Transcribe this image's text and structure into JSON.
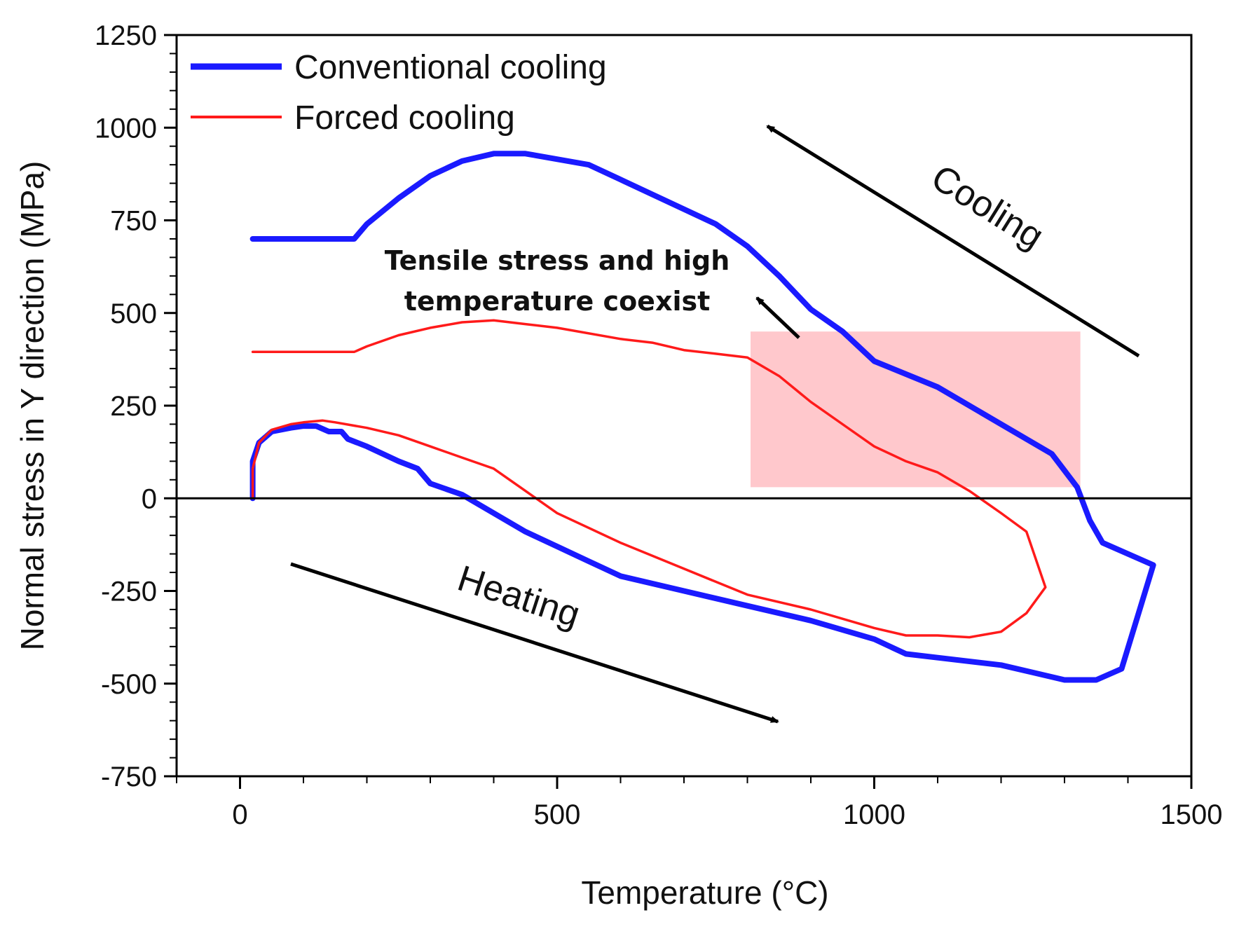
{
  "chart_data": {
    "type": "line",
    "title": "",
    "xlabel": "Temperature (°C)",
    "ylabel": "Normal stress in Y direction (MPa)",
    "xlim": [
      -100,
      1500
    ],
    "ylim": [
      -750,
      1250
    ],
    "xticks": [
      0,
      500,
      1000,
      1500
    ],
    "xtick_labels": [
      "0",
      "500",
      "1000",
      "1500"
    ],
    "yticks": [
      -750,
      -500,
      -250,
      0,
      250,
      500,
      750,
      1000,
      1250
    ],
    "ytick_labels": [
      "-750",
      "-500",
      "-250",
      "0",
      "250",
      "500",
      "750",
      "1000",
      "1250"
    ],
    "grid": false,
    "zero_line": true,
    "legend": {
      "position": "top-left"
    },
    "series": [
      {
        "name": "Conventional cooling",
        "color": "#1a1aff",
        "thick": true,
        "points": [
          [
            20,
            0
          ],
          [
            20,
            100
          ],
          [
            30,
            150
          ],
          [
            50,
            180
          ],
          [
            80,
            190
          ],
          [
            100,
            195
          ],
          [
            120,
            195
          ],
          [
            140,
            180
          ],
          [
            160,
            180
          ],
          [
            170,
            160
          ],
          [
            200,
            140
          ],
          [
            250,
            100
          ],
          [
            280,
            80
          ],
          [
            300,
            40
          ],
          [
            350,
            10
          ],
          [
            400,
            -40
          ],
          [
            450,
            -90
          ],
          [
            500,
            -130
          ],
          [
            550,
            -170
          ],
          [
            600,
            -210
          ],
          [
            700,
            -250
          ],
          [
            800,
            -290
          ],
          [
            900,
            -330
          ],
          [
            1000,
            -380
          ],
          [
            1050,
            -420
          ],
          [
            1100,
            -430
          ],
          [
            1200,
            -450
          ],
          [
            1250,
            -470
          ],
          [
            1300,
            -490
          ],
          [
            1350,
            -490
          ],
          [
            1390,
            -460
          ],
          [
            1440,
            -180
          ],
          [
            1360,
            -120
          ],
          [
            1340,
            -60
          ],
          [
            1320,
            30
          ],
          [
            1280,
            120
          ],
          [
            1200,
            200
          ],
          [
            1100,
            300
          ],
          [
            1000,
            370
          ],
          [
            950,
            450
          ],
          [
            900,
            510
          ],
          [
            850,
            600
          ],
          [
            800,
            680
          ],
          [
            750,
            740
          ],
          [
            700,
            780
          ],
          [
            650,
            820
          ],
          [
            600,
            860
          ],
          [
            550,
            900
          ],
          [
            450,
            930
          ],
          [
            400,
            930
          ],
          [
            350,
            910
          ],
          [
            300,
            870
          ],
          [
            250,
            810
          ],
          [
            200,
            740
          ],
          [
            180,
            700
          ],
          [
            100,
            700
          ],
          [
            20,
            700
          ]
        ]
      },
      {
        "name": "Forced cooling",
        "color": "#ff1a1a",
        "thick": false,
        "points": [
          [
            20,
            0
          ],
          [
            20,
            80
          ],
          [
            30,
            150
          ],
          [
            50,
            185
          ],
          [
            80,
            200
          ],
          [
            100,
            205
          ],
          [
            130,
            210
          ],
          [
            150,
            205
          ],
          [
            200,
            190
          ],
          [
            250,
            170
          ],
          [
            300,
            140
          ],
          [
            350,
            110
          ],
          [
            400,
            80
          ],
          [
            450,
            20
          ],
          [
            500,
            -40
          ],
          [
            550,
            -80
          ],
          [
            600,
            -120
          ],
          [
            700,
            -190
          ],
          [
            800,
            -260
          ],
          [
            900,
            -300
          ],
          [
            1000,
            -350
          ],
          [
            1050,
            -370
          ],
          [
            1100,
            -370
          ],
          [
            1150,
            -375
          ],
          [
            1200,
            -360
          ],
          [
            1240,
            -310
          ],
          [
            1270,
            -240
          ],
          [
            1240,
            -90
          ],
          [
            1200,
            -40
          ],
          [
            1150,
            20
          ],
          [
            1100,
            70
          ],
          [
            1050,
            100
          ],
          [
            1000,
            140
          ],
          [
            950,
            200
          ],
          [
            900,
            260
          ],
          [
            850,
            330
          ],
          [
            800,
            380
          ],
          [
            750,
            390
          ],
          [
            700,
            400
          ],
          [
            650,
            420
          ],
          [
            600,
            430
          ],
          [
            500,
            460
          ],
          [
            450,
            470
          ],
          [
            400,
            480
          ],
          [
            350,
            475
          ],
          [
            300,
            460
          ],
          [
            250,
            440
          ],
          [
            200,
            410
          ],
          [
            180,
            395
          ],
          [
            100,
            395
          ],
          [
            20,
            395
          ]
        ]
      }
    ],
    "shaded_region": {
      "x": [
        805,
        1325
      ],
      "y": [
        30,
        450
      ],
      "color": "#ffc8cc"
    },
    "annotations": {
      "tensile": [
        "Tensile stress and high",
        "temperature coexist"
      ],
      "cooling": "Cooling",
      "heating": "Heating"
    }
  }
}
